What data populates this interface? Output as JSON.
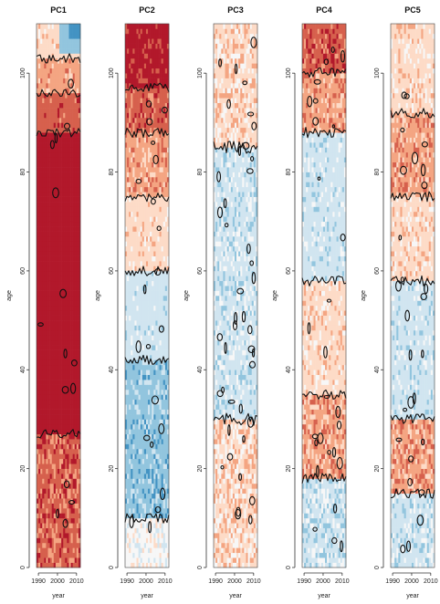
{
  "chart_data": [
    {
      "type": "heatmap",
      "title": "PC1",
      "xlabel": "year",
      "ylabel": "age",
      "xlim": [
        1989,
        2012
      ],
      "ylim": [
        0,
        110
      ],
      "xticks": [
        1990,
        2000,
        2010
      ],
      "yticks": [
        0,
        20,
        40,
        60,
        80,
        100
      ],
      "bands": [
        {
          "from": 0,
          "to": 27,
          "color": "#d6604d",
          "noise": 0.45
        },
        {
          "from": 27,
          "to": 88,
          "color": "#b2182b",
          "noise": 0.0
        },
        {
          "from": 88,
          "to": 96,
          "color": "#d6604d",
          "noise": 0.15
        },
        {
          "from": 96,
          "to": 103,
          "color": "#f4a582",
          "noise": 0.2
        },
        {
          "from": 103,
          "to": 110,
          "color": "#fddbc7",
          "noise": 0.2
        }
      ],
      "accents": [
        {
          "x0": 2001,
          "x1": 2012,
          "y0": 104,
          "y1": 110,
          "color": "#92c5de"
        },
        {
          "x0": 2006,
          "x1": 2012,
          "y0": 107,
          "y1": 110,
          "color": "#4393c3"
        }
      ],
      "contour_density": 0.25
    },
    {
      "type": "heatmap",
      "title": "PC2",
      "xlabel": "year",
      "ylabel": "age",
      "xlim": [
        1989,
        2012
      ],
      "ylim": [
        0,
        110
      ],
      "xticks": [
        1990,
        2000,
        2010
      ],
      "yticks": [
        0,
        20,
        40,
        60,
        80,
        100
      ],
      "bands": [
        {
          "from": 0,
          "to": 10,
          "color": "#f7f7f7",
          "noise": 0.35
        },
        {
          "from": 10,
          "to": 42,
          "color": "#92c5de",
          "noise": 0.35
        },
        {
          "from": 42,
          "to": 60,
          "color": "#d1e5f0",
          "noise": 0.1
        },
        {
          "from": 60,
          "to": 75,
          "color": "#fddbc7",
          "noise": 0.2
        },
        {
          "from": 75,
          "to": 88,
          "color": "#f4a582",
          "noise": 0.3
        },
        {
          "from": 88,
          "to": 97,
          "color": "#d6604d",
          "noise": 0.3
        },
        {
          "from": 97,
          "to": 110,
          "color": "#b2182b",
          "noise": 0.3
        }
      ],
      "accents": [],
      "contour_density": 0.35
    },
    {
      "type": "heatmap",
      "title": "PC3",
      "xlabel": "year",
      "ylabel": "age",
      "xlim": [
        1989,
        2012
      ],
      "ylim": [
        0,
        110
      ],
      "xticks": [
        1990,
        2000,
        2010
      ],
      "yticks": [
        0,
        20,
        40,
        60,
        80,
        100
      ],
      "bands": [
        {
          "from": 0,
          "to": 30,
          "color": "#fddbc7",
          "noise": 0.55
        },
        {
          "from": 30,
          "to": 85,
          "color": "#d1e5f0",
          "noise": 0.35
        },
        {
          "from": 85,
          "to": 110,
          "color": "#fddbc7",
          "noise": 0.45
        }
      ],
      "accents": [],
      "contour_density": 0.7
    },
    {
      "type": "heatmap",
      "title": "PC4",
      "xlabel": "year",
      "ylabel": "age",
      "xlim": [
        1989,
        2012
      ],
      "ylim": [
        0,
        110
      ],
      "xticks": [
        1990,
        2000,
        2010
      ],
      "yticks": [
        0,
        20,
        40,
        60,
        80,
        100
      ],
      "bands": [
        {
          "from": 0,
          "to": 18,
          "color": "#d1e5f0",
          "noise": 0.45
        },
        {
          "from": 18,
          "to": 35,
          "color": "#f4a582",
          "noise": 0.45
        },
        {
          "from": 35,
          "to": 58,
          "color": "#fddbc7",
          "noise": 0.25
        },
        {
          "from": 58,
          "to": 88,
          "color": "#d1e5f0",
          "noise": 0.2
        },
        {
          "from": 88,
          "to": 100,
          "color": "#f4a582",
          "noise": 0.35
        },
        {
          "from": 100,
          "to": 110,
          "color": "#d6604d",
          "noise": 0.35
        }
      ],
      "accents": [],
      "contour_density": 0.45
    },
    {
      "type": "heatmap",
      "title": "PC5",
      "xlabel": "year",
      "ylabel": "age",
      "xlim": [
        1989,
        2012
      ],
      "ylim": [
        0,
        110
      ],
      "xticks": [
        1990,
        2000,
        2010
      ],
      "yticks": [
        0,
        20,
        40,
        60,
        80,
        100
      ],
      "bands": [
        {
          "from": 0,
          "to": 15,
          "color": "#d1e5f0",
          "noise": 0.35
        },
        {
          "from": 15,
          "to": 30,
          "color": "#f4a582",
          "noise": 0.45
        },
        {
          "from": 30,
          "to": 58,
          "color": "#d1e5f0",
          "noise": 0.2
        },
        {
          "from": 58,
          "to": 75,
          "color": "#fddbc7",
          "noise": 0.25
        },
        {
          "from": 75,
          "to": 92,
          "color": "#f4a582",
          "noise": 0.35
        },
        {
          "from": 92,
          "to": 110,
          "color": "#fddbc7",
          "noise": 0.3
        }
      ],
      "accents": [],
      "contour_density": 0.45
    }
  ]
}
